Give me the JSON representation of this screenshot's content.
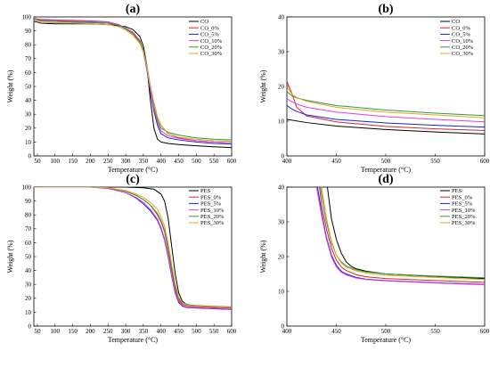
{
  "chart_data": [
    {
      "type": "line",
      "title": "(a)",
      "xlabel": "Temperature (°C)",
      "ylabel": "Weight (%)",
      "xlim": [
        40,
        600
      ],
      "ylim": [
        0,
        100
      ],
      "xticks": [
        50,
        100,
        150,
        200,
        250,
        300,
        350,
        400,
        450,
        500,
        550,
        600
      ],
      "yticks": [
        0,
        10,
        20,
        30,
        40,
        50,
        60,
        70,
        80,
        90,
        100
      ],
      "grid": false,
      "legend_position": "top-right",
      "series": [
        {
          "name": "CO",
          "color": "#000000",
          "x": [
            40,
            60,
            100,
            150,
            200,
            250,
            300,
            320,
            340,
            350,
            360,
            370,
            380,
            390,
            400,
            420,
            450,
            500,
            550,
            600
          ],
          "y": [
            97,
            95.5,
            95,
            95,
            95,
            94.5,
            93,
            91,
            86,
            79,
            65,
            40,
            20,
            12,
            10,
            9,
            8.2,
            7.3,
            6.6,
            6
          ]
        },
        {
          "name": "CO_0%",
          "color": "#d62728",
          "x": [
            40,
            60,
            100,
            150,
            200,
            250,
            280,
            300,
            320,
            340,
            350,
            360,
            370,
            380,
            390,
            400,
            420,
            450,
            500,
            550,
            600
          ],
          "y": [
            99,
            98.2,
            97.8,
            97.5,
            97.2,
            96.5,
            94.5,
            92,
            89,
            83,
            76,
            64,
            50,
            38,
            28,
            22,
            16,
            13,
            11,
            10,
            9.5
          ]
        },
        {
          "name": "CO_5%",
          "color": "#1f1fd6",
          "x": [
            40,
            60,
            100,
            150,
            200,
            250,
            280,
            300,
            320,
            340,
            350,
            360,
            370,
            380,
            390,
            400,
            420,
            450,
            500,
            550,
            600
          ],
          "y": [
            98.5,
            97.2,
            96.8,
            96.3,
            96,
            95.5,
            94,
            91.5,
            88,
            82,
            75,
            62,
            46,
            32,
            22,
            16,
            13,
            11.5,
            10,
            9,
            8.5
          ]
        },
        {
          "name": "CO_10%",
          "color": "#e040e0",
          "x": [
            40,
            60,
            100,
            150,
            200,
            250,
            280,
            300,
            320,
            340,
            350,
            360,
            370,
            380,
            390,
            400,
            420,
            450,
            500,
            550,
            600
          ],
          "y": [
            99,
            97.8,
            97.4,
            97,
            96.8,
            96.2,
            94.5,
            92,
            88.5,
            82,
            75,
            63,
            48,
            34,
            24,
            18,
            14.5,
            12.5,
            11,
            10,
            9.5
          ]
        },
        {
          "name": "CO_20%",
          "color": "#2ca02c",
          "x": [
            40,
            60,
            100,
            150,
            200,
            250,
            280,
            300,
            320,
            340,
            350,
            360,
            370,
            380,
            390,
            400,
            420,
            450,
            500,
            550,
            600
          ],
          "y": [
            98.5,
            97,
            96.8,
            96.5,
            96.2,
            95.5,
            94,
            91.5,
            88,
            82,
            76,
            65,
            50,
            36,
            26,
            20,
            17,
            15,
            13,
            12,
            11.5
          ]
        },
        {
          "name": "CO_30%",
          "color": "#e8a02c",
          "x": [
            40,
            60,
            100,
            150,
            200,
            250,
            280,
            300,
            320,
            340,
            350,
            360,
            370,
            380,
            390,
            400,
            420,
            450,
            500,
            550,
            600
          ],
          "y": [
            97.5,
            96,
            95.8,
            95.5,
            95.2,
            94.5,
            93,
            90.5,
            87,
            81,
            75,
            64,
            50,
            37,
            28,
            22,
            16,
            13.5,
            12,
            11,
            10.5
          ]
        }
      ]
    },
    {
      "type": "line",
      "title": "(b)",
      "xlabel": "Temperature (°C)",
      "ylabel": "Weight (%)",
      "xlim": [
        400,
        600
      ],
      "ylim": [
        0,
        40
      ],
      "xticks": [
        400,
        450,
        500,
        550,
        600
      ],
      "yticks": [
        0,
        10,
        20,
        30,
        40
      ],
      "grid": false,
      "legend_position": "top-right",
      "series": [
        {
          "name": "CO",
          "color": "#000000",
          "x": [
            400,
            420,
            450,
            500,
            550,
            600
          ],
          "y": [
            10.5,
            9.6,
            8.6,
            7.6,
            6.9,
            6.3
          ]
        },
        {
          "name": "CO_0%",
          "color": "#d62728",
          "x": [
            400,
            405,
            410,
            420,
            450,
            500,
            550,
            600
          ],
          "y": [
            21.5,
            18,
            14,
            11.5,
            9.8,
            8.5,
            7.8,
            7.3
          ]
        },
        {
          "name": "CO_5%",
          "color": "#1f1fd6",
          "x": [
            400,
            405,
            410,
            420,
            450,
            500,
            550,
            600
          ],
          "y": [
            14.5,
            13.5,
            12.8,
            11.8,
            10.5,
            9.5,
            8.8,
            8.3
          ]
        },
        {
          "name": "CO_10%",
          "color": "#e040e0",
          "x": [
            400,
            405,
            410,
            420,
            450,
            500,
            550,
            600
          ],
          "y": [
            16.5,
            15.6,
            14.9,
            14,
            12.6,
            11.3,
            10.5,
            9.8
          ]
        },
        {
          "name": "CO_20%",
          "color": "#2ca02c",
          "x": [
            400,
            405,
            410,
            420,
            450,
            500,
            550,
            600
          ],
          "y": [
            18.5,
            17.3,
            16.7,
            16,
            14.5,
            13.2,
            12.3,
            11.6
          ]
        },
        {
          "name": "CO_30%",
          "color": "#e8a02c",
          "x": [
            400,
            405,
            410,
            420,
            450,
            500,
            550,
            600
          ],
          "y": [
            20,
            17.8,
            16.8,
            15.7,
            14,
            12.6,
            11.8,
            11
          ]
        }
      ]
    },
    {
      "type": "line",
      "title": "(c)",
      "xlabel": "Temperature (°C)",
      "ylabel": "Weight (%)",
      "xlim": [
        40,
        600
      ],
      "ylim": [
        0,
        100
      ],
      "xticks": [
        50,
        100,
        150,
        200,
        250,
        300,
        350,
        400,
        450,
        500,
        550,
        600
      ],
      "yticks": [
        0,
        10,
        20,
        30,
        40,
        50,
        60,
        70,
        80,
        90,
        100
      ],
      "grid": false,
      "legend_position": "top-right",
      "series": [
        {
          "name": "PES",
          "color": "#000000",
          "x": [
            40,
            100,
            200,
            300,
            350,
            380,
            400,
            410,
            420,
            430,
            440,
            450,
            460,
            470,
            480,
            500,
            550,
            600
          ],
          "y": [
            100,
            100,
            100,
            100,
            99.5,
            98.5,
            95,
            90,
            78,
            58,
            38,
            24,
            18,
            16,
            15,
            14.5,
            14,
            13.5
          ]
        },
        {
          "name": "PES_0%",
          "color": "#d62728",
          "x": [
            40,
            100,
            200,
            250,
            300,
            330,
            350,
            370,
            390,
            400,
            410,
            420,
            430,
            440,
            450,
            460,
            470,
            480,
            500,
            550,
            600
          ],
          "y": [
            100,
            100,
            100,
            99.5,
            97,
            94,
            91,
            87,
            80,
            75,
            68,
            55,
            40,
            27,
            19,
            16,
            15,
            14.5,
            14,
            13.5,
            13
          ]
        },
        {
          "name": "PES_5%",
          "color": "#1f1fd6",
          "x": [
            40,
            100,
            200,
            250,
            300,
            330,
            350,
            370,
            390,
            400,
            410,
            420,
            430,
            440,
            450,
            460,
            470,
            480,
            500,
            550,
            600
          ],
          "y": [
            100,
            100,
            100,
            99,
            96,
            92,
            88,
            83,
            76,
            70,
            62,
            50,
            36,
            24,
            17,
            14.5,
            13.5,
            13.2,
            13,
            12.5,
            12
          ]
        },
        {
          "name": "PES_10%",
          "color": "#e040e0",
          "x": [
            40,
            100,
            200,
            250,
            300,
            330,
            350,
            370,
            390,
            400,
            410,
            420,
            430,
            440,
            450,
            460,
            470,
            480,
            500,
            550,
            600
          ],
          "y": [
            100,
            100,
            100,
            99,
            96,
            92.5,
            89,
            84,
            77,
            71,
            63,
            51,
            37,
            25,
            18,
            15,
            14,
            13.6,
            13.3,
            12.8,
            12.3
          ]
        },
        {
          "name": "PES_20%",
          "color": "#2ca02c",
          "x": [
            40,
            100,
            200,
            250,
            300,
            330,
            350,
            370,
            390,
            400,
            410,
            420,
            430,
            440,
            450,
            460,
            470,
            480,
            500,
            550,
            600
          ],
          "y": [
            100,
            100,
            100,
            99.5,
            97,
            94,
            91,
            87,
            81,
            76,
            69,
            57,
            42,
            29,
            20,
            17,
            16,
            15.3,
            14.8,
            14.3,
            13.8
          ]
        },
        {
          "name": "PES_30%",
          "color": "#e8a02c",
          "x": [
            40,
            100,
            200,
            250,
            300,
            330,
            350,
            370,
            390,
            400,
            410,
            420,
            430,
            440,
            450,
            460,
            470,
            480,
            500,
            550,
            600
          ],
          "y": [
            100,
            100,
            100,
            99.5,
            97.5,
            95,
            92.5,
            89,
            84,
            79,
            72,
            60,
            45,
            31,
            21,
            17,
            15.5,
            15,
            14.5,
            14,
            13.5
          ]
        }
      ]
    },
    {
      "type": "line",
      "title": "(d)",
      "xlabel": "Temperature (°C)",
      "ylabel": "Weight (%)",
      "xlim": [
        400,
        600
      ],
      "ylim": [
        0,
        40
      ],
      "xticks": [
        400,
        450,
        500,
        550,
        600
      ],
      "yticks": [
        0,
        10,
        20,
        30,
        40
      ],
      "grid": false,
      "legend_position": "top-right",
      "series": [
        {
          "name": "PES",
          "color": "#000000",
          "x": [
            441,
            445,
            450,
            455,
            460,
            465,
            470,
            480,
            500,
            550,
            600
          ],
          "y": [
            40,
            31,
            25,
            21,
            18.5,
            17.2,
            16.5,
            15.8,
            15,
            14.3,
            13.7
          ]
        },
        {
          "name": "PES_0%",
          "color": "#d62728",
          "x": [
            433,
            435,
            440,
            445,
            450,
            455,
            460,
            470,
            480,
            500,
            550,
            600
          ],
          "y": [
            40,
            35,
            28,
            22.5,
            19,
            17,
            16,
            14.8,
            14.2,
            13.7,
            13.1,
            12.6
          ]
        },
        {
          "name": "PES_5%",
          "color": "#1f1fd6",
          "x": [
            431,
            435,
            440,
            445,
            450,
            455,
            460,
            470,
            480,
            500,
            550,
            600
          ],
          "y": [
            40,
            33,
            25.5,
            20.5,
            17.5,
            15.8,
            15,
            14,
            13.5,
            13.1,
            12.5,
            12
          ]
        },
        {
          "name": "PES_10%",
          "color": "#e040e0",
          "x": [
            430,
            435,
            440,
            445,
            450,
            455,
            460,
            470,
            480,
            500,
            550,
            600
          ],
          "y": [
            40,
            32,
            25,
            20,
            17,
            15.5,
            14.7,
            13.8,
            13.4,
            13,
            12.4,
            11.9
          ]
        },
        {
          "name": "PES_20%",
          "color": "#2ca02c",
          "x": [
            434,
            435,
            440,
            445,
            450,
            455,
            460,
            470,
            480,
            500,
            550,
            600
          ],
          "y": [
            40,
            38,
            30,
            24,
            20.5,
            18.5,
            17.3,
            16.2,
            15.6,
            15,
            14.4,
            13.9
          ]
        },
        {
          "name": "PES_30%",
          "color": "#e8a02c",
          "x": [
            435,
            440,
            445,
            450,
            455,
            460,
            470,
            480,
            500,
            550,
            600
          ],
          "y": [
            40,
            31,
            24.5,
            20.5,
            18.2,
            17,
            15.9,
            15.3,
            14.6,
            14,
            13.4
          ]
        }
      ]
    }
  ]
}
